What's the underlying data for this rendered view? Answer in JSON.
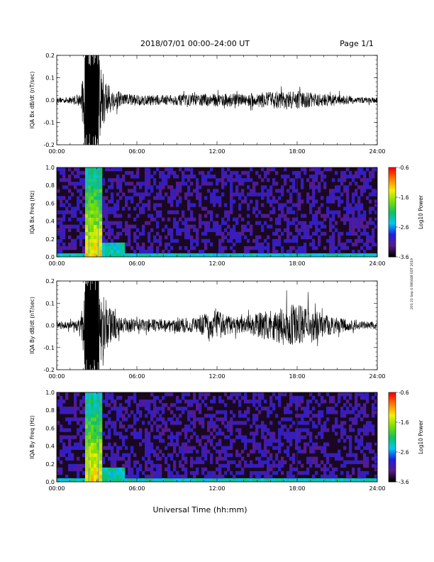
{
  "header": {
    "title": "2018/07/01   00:00–24:00 UT",
    "page": "Page 1/1"
  },
  "xlabel": "Universal Time (hh:mm)",
  "side_note": "201 21 Sep 4 080448 EDT 2019",
  "colorbar": {
    "label": "Log10 Power",
    "ticks": [
      "-0.6",
      "-1.6",
      "-2.6",
      "-3.6"
    ],
    "colors": [
      "#000000",
      "#5a1a8a",
      "#1f1fe0",
      "#00c8f0",
      "#10c060",
      "#7ae000",
      "#f5f000",
      "#ff8000",
      "#ff0000"
    ]
  },
  "colors": {
    "trace": "#000000",
    "spectrogram_bg": "#1a0820"
  },
  "chart_data": [
    {
      "type": "line",
      "name": "IQA Bx dB/dt",
      "ylabel": "IQA Bx dB/dt (nT/sec)",
      "xlim": [
        0,
        24
      ],
      "ylim": [
        -0.2,
        0.2
      ],
      "x_ticks": [
        "00:00",
        "06:00",
        "12:00",
        "18:00",
        "24:00"
      ],
      "y_ticks": [
        "-0.2",
        "-0.1",
        "0.0",
        "0.1",
        "0.2"
      ],
      "envelope": {
        "hours": [
          0,
          1,
          1.8,
          2.1,
          2.4,
          2.8,
          3.1,
          3.5,
          4.0,
          5,
          6,
          8,
          10,
          12,
          14,
          15.5,
          16.5,
          17.5,
          18.5,
          19.5,
          21,
          22.5,
          24
        ],
        "amplitude": [
          0.012,
          0.015,
          0.03,
          0.2,
          0.2,
          0.2,
          0.2,
          0.12,
          0.06,
          0.03,
          0.025,
          0.022,
          0.025,
          0.03,
          0.028,
          0.035,
          0.04,
          0.038,
          0.04,
          0.03,
          0.025,
          0.015,
          0.012
        ]
      }
    },
    {
      "type": "heatmap",
      "name": "IQA Bx Freq",
      "ylabel": "IQA Bx Freq (Hz)",
      "xlim": [
        0,
        24
      ],
      "ylim": [
        0,
        1
      ],
      "x_ticks": [
        "00:00",
        "06:00",
        "12:00",
        "18:00",
        "24:00"
      ],
      "y_ticks": [
        "0.0",
        "0.2",
        "0.4",
        "0.6",
        "0.8",
        "1.0"
      ],
      "zlim": [
        -3.6,
        -0.6
      ],
      "bright_intervals_h": [
        [
          2.2,
          2.9
        ],
        [
          3.0,
          3.3
        ]
      ],
      "vertical_lines_h": [
        2.4,
        3.1,
        18.0
      ]
    },
    {
      "type": "line",
      "name": "IQA By dB/dt",
      "ylabel": "IQA By dB/dt (nT/sec)",
      "xlim": [
        0,
        24
      ],
      "ylim": [
        -0.2,
        0.2
      ],
      "x_ticks": [
        "00:00",
        "06:00",
        "12:00",
        "18:00",
        "24:00"
      ],
      "y_ticks": [
        "-0.2",
        "-0.1",
        "0.0",
        "0.1",
        "0.2"
      ],
      "envelope": {
        "hours": [
          0,
          1,
          1.8,
          2.1,
          2.4,
          2.8,
          3.1,
          3.5,
          4.0,
          5,
          6,
          8,
          10,
          11,
          12,
          13,
          14,
          15,
          16,
          17,
          18,
          19,
          20,
          21,
          22.5,
          24
        ],
        "amplitude": [
          0.015,
          0.018,
          0.03,
          0.2,
          0.2,
          0.2,
          0.2,
          0.14,
          0.08,
          0.035,
          0.03,
          0.03,
          0.035,
          0.05,
          0.07,
          0.04,
          0.04,
          0.055,
          0.07,
          0.09,
          0.1,
          0.08,
          0.05,
          0.035,
          0.02,
          0.015
        ]
      }
    },
    {
      "type": "heatmap",
      "name": "IQA By Freq",
      "ylabel": "IQA By Freq (Hz)",
      "xlim": [
        0,
        24
      ],
      "ylim": [
        0,
        1
      ],
      "x_ticks": [
        "00:00",
        "06:00",
        "12:00",
        "18:00",
        "24:00"
      ],
      "y_ticks": [
        "0.0",
        "0.2",
        "0.4",
        "0.6",
        "0.8",
        "1.0"
      ],
      "zlim": [
        -3.6,
        -0.6
      ],
      "bright_intervals_h": [
        [
          2.2,
          2.9
        ],
        [
          3.0,
          3.3
        ]
      ],
      "vertical_lines_h": [
        2.4,
        3.1,
        18.0
      ]
    }
  ]
}
